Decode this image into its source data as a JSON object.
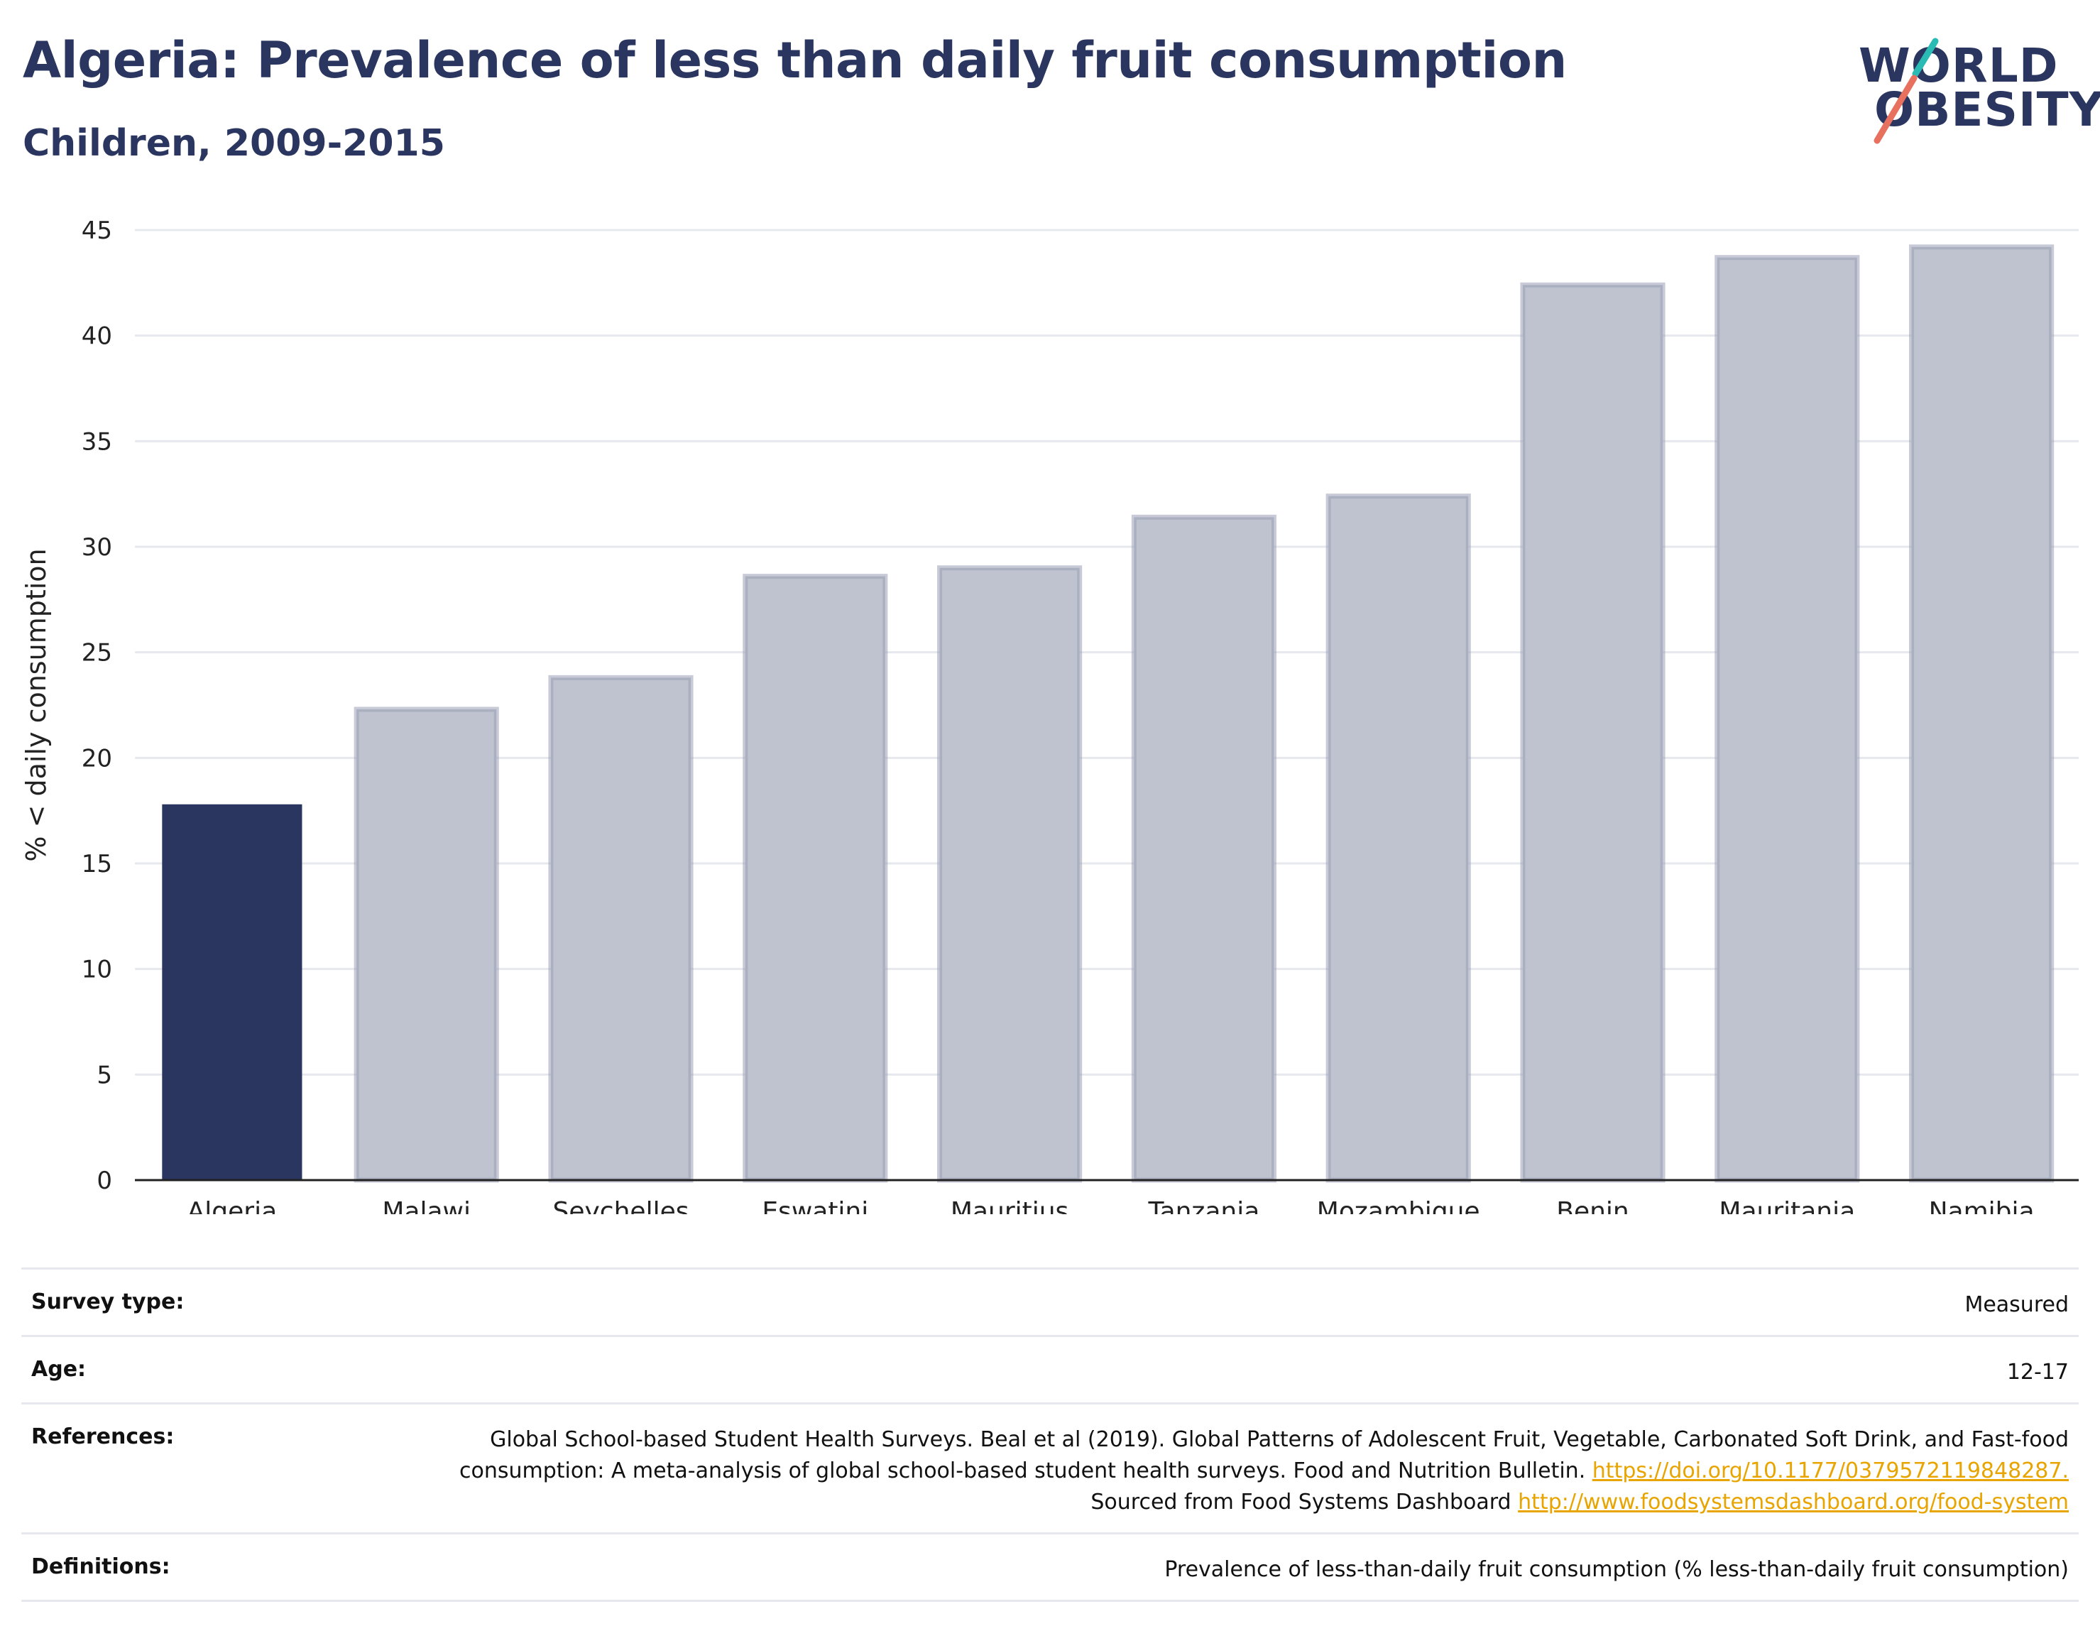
{
  "header": {
    "title": "Algeria: Prevalence of less than daily fruit consumption",
    "subtitle": "Children, 2009-2015"
  },
  "logo": {
    "line1": "WORLD",
    "line2": "OBESITY",
    "colors": {
      "text": "#2a365f",
      "teal": "#2bbbb5",
      "coral": "#e8705f"
    }
  },
  "colors": {
    "highlight_bar": "#2a365f",
    "other_bar_fill": "#bfc3cf",
    "other_bar_stroke": "#9aa0b6",
    "gridline": "#e6e8ee",
    "axis": "#222222",
    "link": "#e8a400"
  },
  "chart_data": {
    "type": "bar",
    "title": "Algeria: Prevalence of less than daily fruit consumption",
    "subtitle": "Children, 2009-2015",
    "xlabel": "",
    "ylabel": "% < daily consumption",
    "categories": [
      "Algeria",
      "Malawi",
      "Seychelles",
      "Eswatini",
      "Mauritius",
      "Tanzania",
      "Mozambique",
      "Benin",
      "Mauritania",
      "Namibia"
    ],
    "values": [
      17.8,
      22.3,
      23.8,
      28.6,
      29.0,
      31.4,
      32.4,
      42.4,
      43.7,
      44.2
    ],
    "highlight": "Algeria",
    "ylim": [
      0,
      45
    ],
    "yticks": [
      0,
      5,
      10,
      15,
      20,
      25,
      30,
      35,
      40,
      45
    ],
    "grid": true,
    "legend": "none"
  },
  "meta": {
    "survey_type": {
      "label": "Survey type:",
      "value": "Measured"
    },
    "age": {
      "label": "Age:",
      "value": "12-17"
    },
    "references": {
      "label": "References:",
      "text1": "Global School-based Student Health Surveys. Beal et al (2019). Global Patterns of Adolescent Fruit, Vegetable, Carbonated Soft Drink, and Fast-food consumption: A meta-analysis of global school-based student health surveys. Food and Nutrition Bulletin.",
      "link1": "https://doi.org/10.1177/0379572119848287.",
      "text2": "Sourced from Food Systems Dashboard",
      "link2": "http://www.foodsystemsdashboard.org/food-system"
    },
    "definitions": {
      "label": "Definitions:",
      "value": "Prevalence of less-than-daily fruit consumption (% less-than-daily fruit consumption)"
    }
  }
}
